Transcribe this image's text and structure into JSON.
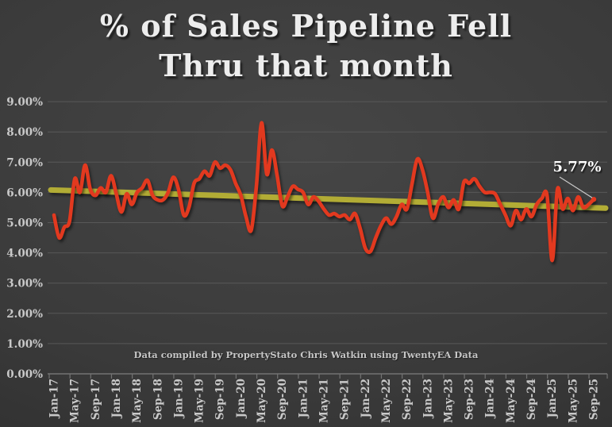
{
  "title": {
    "line1": "% of Sales Pipeline Fell",
    "line2": "Thru that month"
  },
  "footer": "Data compiled by PropertyStato Chris Watkin using TwentyEA Data",
  "colors": {
    "background": "#3a3a3a",
    "series_red": "#e2391f",
    "trendline_olive": "#b2ac35",
    "gridline": "#585858",
    "axis_line": "#737373",
    "axis_label": "#c9c9c9",
    "title_text": "#ededed",
    "annotation_text": "#ffffff",
    "leader_line": "#c9c9c9"
  },
  "chart_data": {
    "type": "line",
    "title": "% of Sales Pipeline Fell Thru that month",
    "xlabel": "",
    "ylabel": "",
    "ylim": [
      0,
      9
    ],
    "y_unit": "%",
    "grid": "horizontal",
    "legend": "none",
    "y_tick_labels": [
      "0.00%",
      "1.00%",
      "2.00%",
      "3.00%",
      "4.00%",
      "5.00%",
      "6.00%",
      "7.00%",
      "8.00%",
      "9.00%"
    ],
    "x_start": "Jan-17",
    "x_end": "Sep-25",
    "x_tick_every": 4,
    "x_tick_labels": [
      "Jan-17",
      "May-17",
      "Sep-17",
      "Jan-18",
      "May-18",
      "Sep-18",
      "Jan-19",
      "May-19",
      "Sep-19",
      "Jan-20",
      "May-20",
      "Sep-20",
      "Jan-21",
      "May-21",
      "Sep-21",
      "Jan-22",
      "May-22",
      "Sep-22",
      "Jan-23",
      "May-23",
      "Sep-23",
      "Jan-24",
      "May-24",
      "Sep-24",
      "Jan-25",
      "May-25",
      "Sep-25"
    ],
    "series": [
      {
        "name": "pct-of-sales-pipeline-fell-thru",
        "color": "#e2391f",
        "smoothed": true,
        "values": [
          5.25,
          4.5,
          4.85,
          5.05,
          6.45,
          6.0,
          6.9,
          6.1,
          5.9,
          6.15,
          6.0,
          6.55,
          5.95,
          5.35,
          5.95,
          5.6,
          6.0,
          6.15,
          6.4,
          5.9,
          5.75,
          5.75,
          6.0,
          6.5,
          6.1,
          5.25,
          5.5,
          6.3,
          6.45,
          6.7,
          6.55,
          7.0,
          6.8,
          6.9,
          6.75,
          6.3,
          5.9,
          5.2,
          4.75,
          6.2,
          8.3,
          6.6,
          7.4,
          6.55,
          5.55,
          5.85,
          6.2,
          6.1,
          6.0,
          5.6,
          5.85,
          5.7,
          5.45,
          5.25,
          5.3,
          5.2,
          5.25,
          5.1,
          5.3,
          4.8,
          4.15,
          4.05,
          4.5,
          4.9,
          5.15,
          4.95,
          5.2,
          5.6,
          5.45,
          6.3,
          7.1,
          6.75,
          6.0,
          5.15,
          5.6,
          5.85,
          5.5,
          5.75,
          5.45,
          6.35,
          6.3,
          6.45,
          6.2,
          6.0,
          6.0,
          5.95,
          5.6,
          5.25,
          4.9,
          5.4,
          5.1,
          5.45,
          5.2,
          5.6,
          5.8,
          5.9,
          3.75,
          6.1,
          5.45,
          5.8,
          5.4,
          5.85,
          5.5,
          5.6,
          5.77
        ]
      },
      {
        "name": "linear-trendline",
        "color": "#b2ac35",
        "trend": true,
        "start_value": 6.08,
        "end_value": 5.48
      }
    ],
    "annotation": {
      "text": "5.77%",
      "target": "last-point"
    }
  }
}
